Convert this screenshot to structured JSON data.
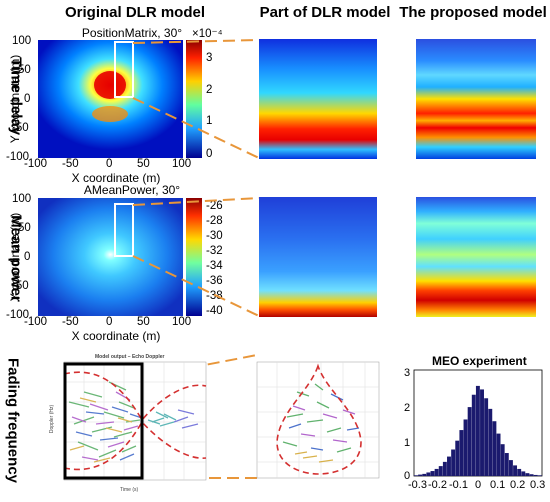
{
  "headers": {
    "col1": "Original DLR model",
    "col2": "Part of DLR model",
    "col3": "The proposed model"
  },
  "rows": {
    "time_delay": "Time delay",
    "mean_power": "Mean power",
    "fading_frequency": "Fading frequency"
  },
  "plot1": {
    "title": "PositionMatrix, 30°",
    "ylabel": "Y coordinate (m)",
    "xlabel": "X coordinate (m)",
    "yticks": [
      "100",
      "50",
      "0",
      "-50",
      "-100"
    ],
    "xticks": [
      "-100",
      "-50",
      "0",
      "50",
      "100"
    ],
    "cbar_ticks": [
      "3",
      "2",
      "1",
      "0"
    ],
    "cbar_exponent": "×10⁻⁴"
  },
  "plot2": {
    "title": "AMeanPower, 30°",
    "ylabel": "Y coordinate (m)",
    "xlabel": "X coordinate (m)",
    "yticks": [
      "100",
      "50",
      "0",
      "-50",
      "-100"
    ],
    "xticks": [
      "-100",
      "-50",
      "0",
      "50",
      "100"
    ],
    "cbar_ticks": [
      "-26",
      "-28",
      "-30",
      "-32",
      "-34",
      "-36",
      "-38",
      "-40"
    ]
  },
  "doppler": {
    "title": "Model output – Echo Doppler",
    "xlabel": "Time (s)",
    "ylabel": "Doppler (Hz)"
  },
  "histogram": {
    "title": "MEO experiment",
    "xticks": [
      "-0.3",
      "-0.2",
      "-0.1",
      "0",
      "0.1",
      "0.2",
      "0.3"
    ],
    "yticks": [
      "3",
      "2",
      "1",
      "0"
    ],
    "chart_data": {
      "type": "bar",
      "title": "MEO experiment",
      "x": [
        -0.3,
        -0.28,
        -0.26,
        -0.24,
        -0.22,
        -0.2,
        -0.18,
        -0.16,
        -0.14,
        -0.12,
        -0.1,
        -0.08,
        -0.06,
        -0.04,
        -0.02,
        0,
        0.02,
        0.04,
        0.06,
        0.08,
        0.1,
        0.12,
        0.14,
        0.16,
        0.18,
        0.2,
        0.22,
        0.24,
        0.26,
        0.28,
        0.3
      ],
      "values": [
        0.02,
        0.04,
        0.06,
        0.1,
        0.14,
        0.2,
        0.28,
        0.4,
        0.55,
        0.75,
        1.0,
        1.3,
        1.6,
        1.95,
        2.3,
        2.55,
        2.45,
        2.2,
        1.9,
        1.55,
        1.2,
        0.9,
        0.65,
        0.45,
        0.3,
        0.2,
        0.13,
        0.08,
        0.05,
        0.03,
        0.02
      ],
      "ylim": [
        0,
        3
      ],
      "xlim": [
        -0.3,
        0.3
      ]
    }
  },
  "colors": {
    "connector": "#e8963a",
    "doppler_envelope": "#d43030",
    "histogram_bar": "#1b1a6e"
  }
}
